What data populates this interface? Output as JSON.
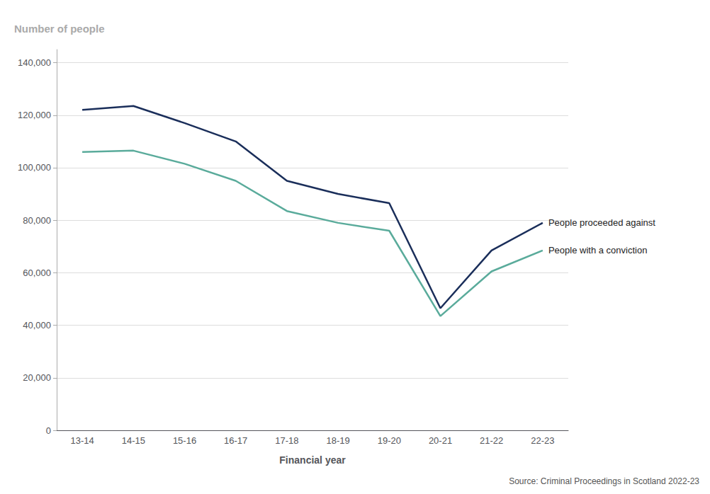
{
  "chart_data": {
    "type": "line",
    "ylabel": "Number of people",
    "xlabel": "Financial year",
    "source": "Source: Criminal Proceedings in Scotland 2022-23",
    "categories": [
      "13-14",
      "14-15",
      "15-16",
      "16-17",
      "17-18",
      "18-19",
      "19-20",
      "20-21",
      "21-22",
      "22-23"
    ],
    "series": [
      {
        "name": "People proceeded against",
        "color": "#1a2e5a",
        "values": [
          122000,
          123500,
          117000,
          110000,
          95000,
          90000,
          86500,
          46500,
          68500,
          79000
        ]
      },
      {
        "name": "People with a conviction",
        "color": "#5aab9b",
        "values": [
          106000,
          106500,
          101500,
          95000,
          83500,
          79000,
          76000,
          43500,
          60500,
          68500
        ]
      }
    ],
    "ylim": [
      0,
      145000
    ],
    "yticks": [
      0,
      {
        "value": 20000,
        "label": "20,000"
      },
      {
        "value": 40000,
        "label": "40,000"
      },
      {
        "value": 60000,
        "label": "60,000"
      },
      {
        "value": 80000,
        "label": "80,000"
      },
      {
        "value": 100000,
        "label": "100,000"
      },
      {
        "value": 120000,
        "label": "120,000"
      },
      {
        "value": 140000,
        "label": "140,000"
      }
    ],
    "grid": true
  }
}
